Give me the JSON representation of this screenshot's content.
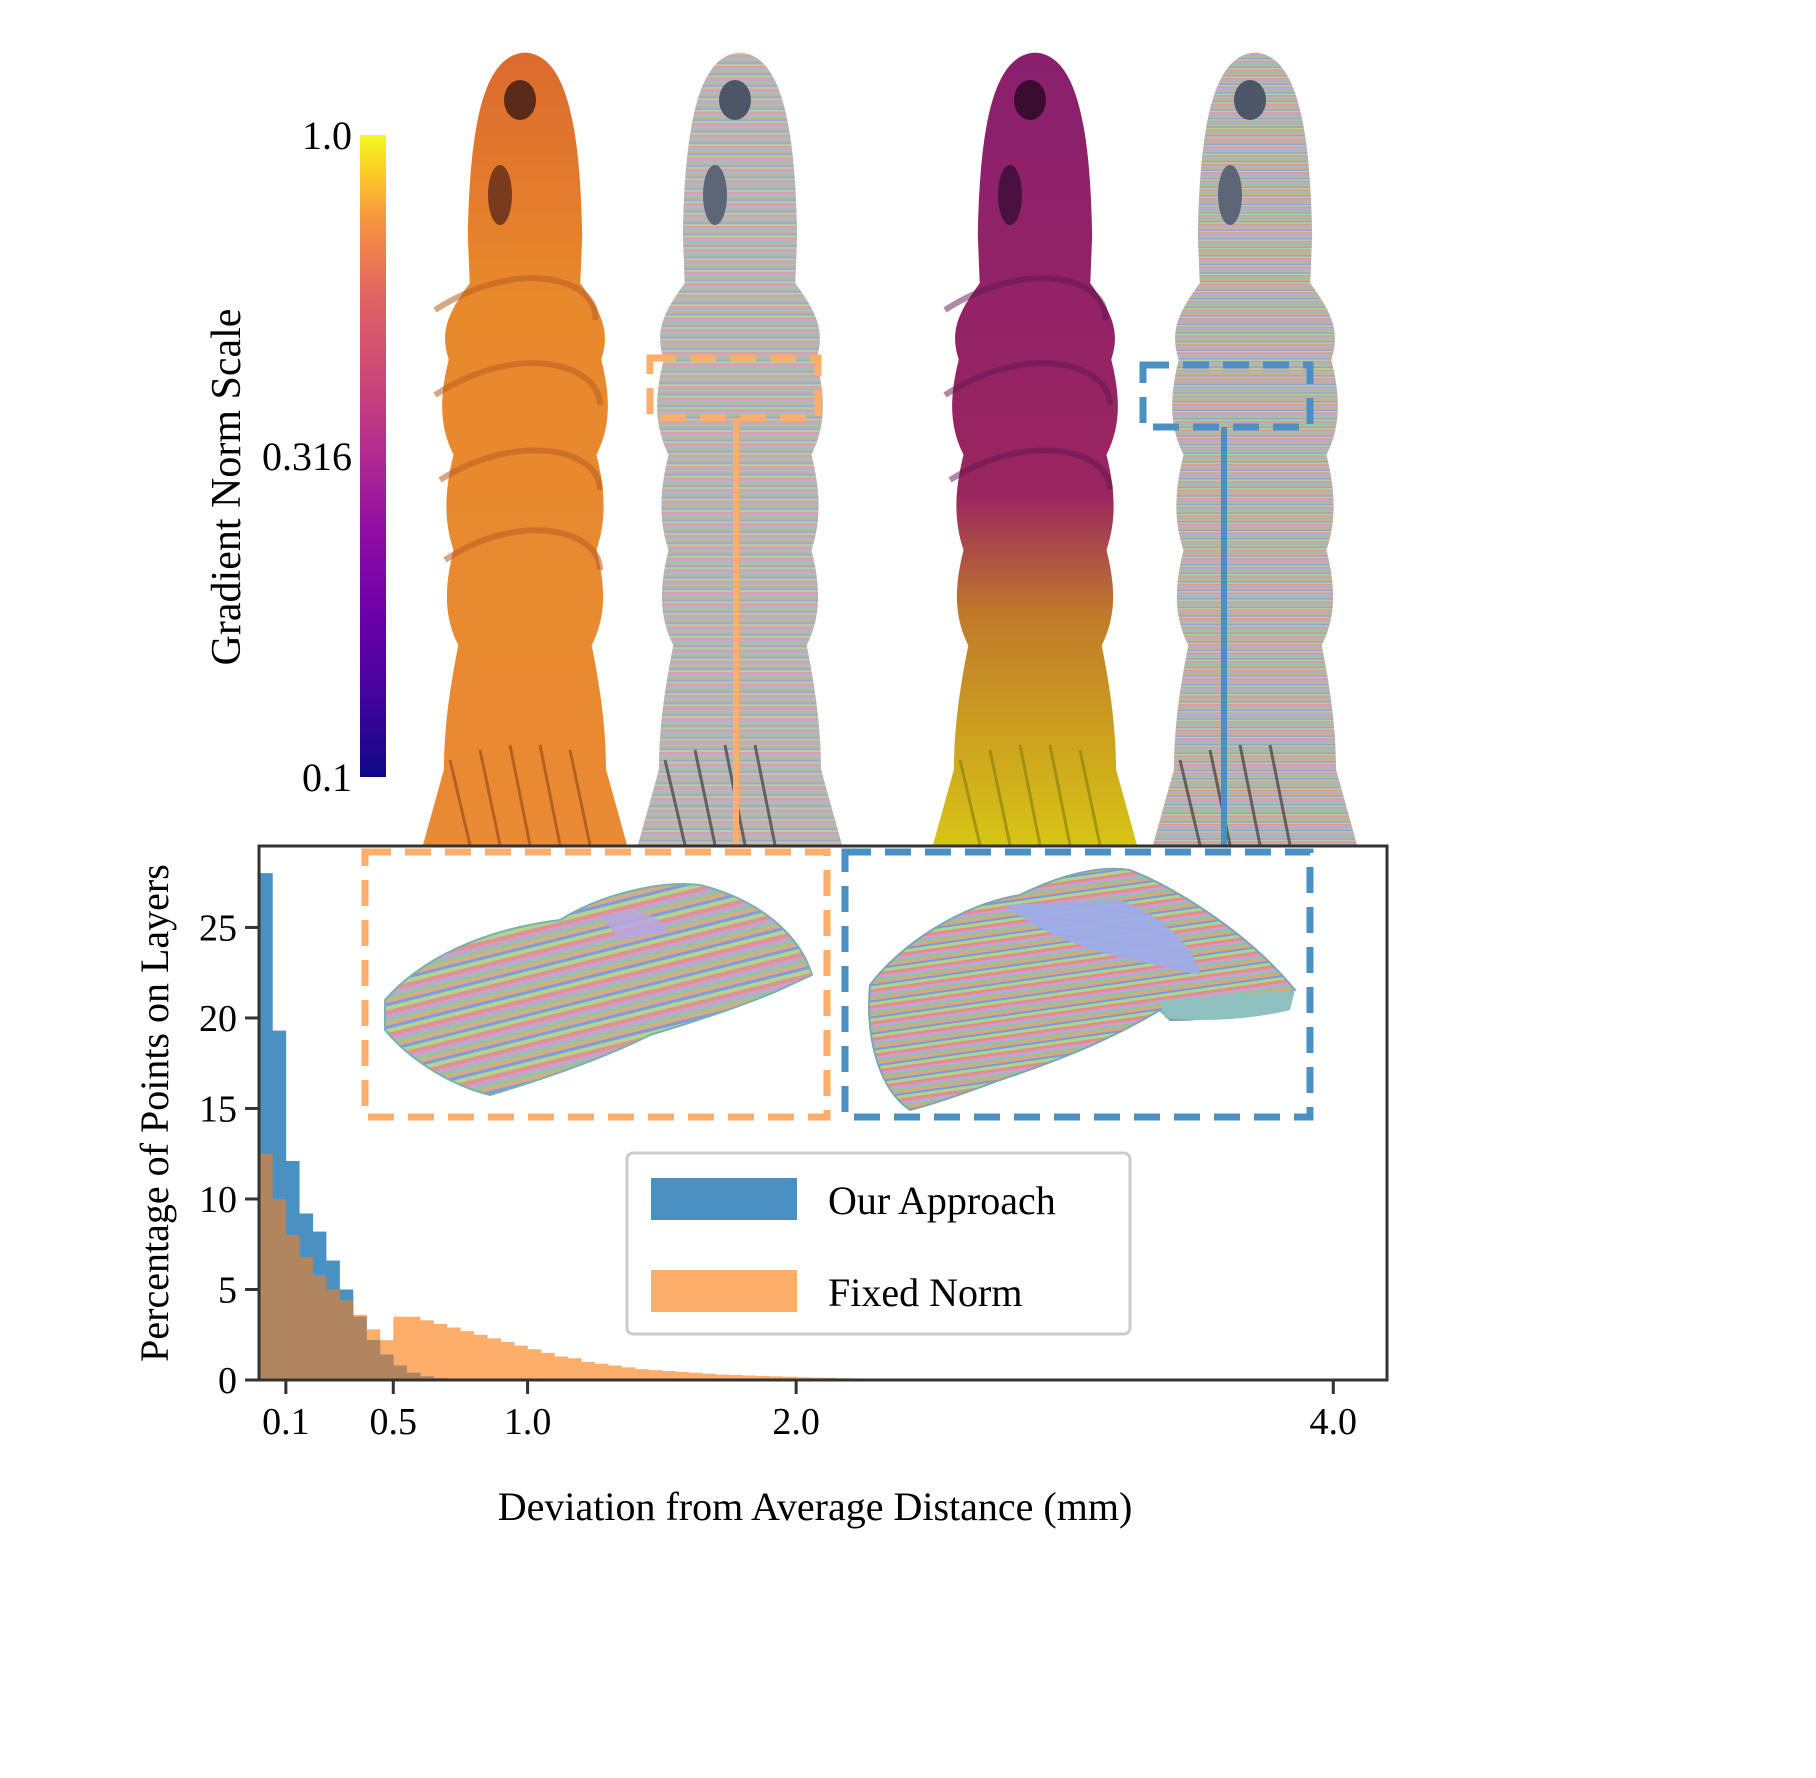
{
  "colorbar": {
    "label": "Gradient Norm Scale",
    "ticks": [
      {
        "value": 1.0,
        "label": "1.0"
      },
      {
        "value": 0.316,
        "label": "0.316"
      },
      {
        "value": 0.1,
        "label": "0.1"
      }
    ],
    "range": [
      0.1,
      1.0
    ],
    "scale": "log",
    "colormap": "plasma"
  },
  "renders": {
    "names": [
      "our-approach-gradient-render",
      "our-approach-layers-render",
      "fixed-norm-gradient-render",
      "fixed-norm-layers-render"
    ],
    "colors": {
      "ours_gradient": "#e8892c",
      "fixed_top": "#8a1f6e",
      "fixed_bottom": "#d8c814"
    }
  },
  "colors": {
    "our_approach": "#4a90c2",
    "fixed_norm": "#fdae6b",
    "overlap": "#b08560"
  },
  "chart_data": {
    "type": "bar",
    "subtype": "overlaid-histogram",
    "xlabel": "Deviation from Average Distance (mm)",
    "ylabel": "Percentage of Points on Layers",
    "xlim": [
      0.0,
      4.2
    ],
    "ylim": [
      0,
      29.5
    ],
    "xticks": [
      {
        "value": 0.1,
        "label": "0.1"
      },
      {
        "value": 0.5,
        "label": "0.5"
      },
      {
        "value": 1.0,
        "label": "1.0"
      },
      {
        "value": 2.0,
        "label": "2.0"
      },
      {
        "value": 4.0,
        "label": "4.0"
      }
    ],
    "yticks": [
      {
        "value": 0,
        "label": "0"
      },
      {
        "value": 5,
        "label": "5"
      },
      {
        "value": 10,
        "label": "10"
      },
      {
        "value": 15,
        "label": "15"
      },
      {
        "value": 20,
        "label": "20"
      },
      {
        "value": 25,
        "label": "25"
      }
    ],
    "bin_width": 0.05,
    "bin_start": 0.0,
    "legend_position": "center-right",
    "series": [
      {
        "name": "Our Approach",
        "color": "#4a90c2",
        "values": [
          28.0,
          19.3,
          12.1,
          9.2,
          8.2,
          6.6,
          5.0,
          3.5,
          2.2,
          1.4,
          0.8,
          0.4,
          0.2,
          0.1,
          0.05,
          0.02
        ]
      },
      {
        "name": "Fixed Norm",
        "color": "#fdae6b",
        "values": [
          12.5,
          10.0,
          8.0,
          6.8,
          5.8,
          5.0,
          4.4,
          3.6,
          2.8,
          2.2,
          3.5,
          3.5,
          3.3,
          3.1,
          2.9,
          2.7,
          2.5,
          2.3,
          2.1,
          1.9,
          1.7,
          1.5,
          1.3,
          1.2,
          1.0,
          0.9,
          0.8,
          0.7,
          0.6,
          0.55,
          0.5,
          0.45,
          0.4,
          0.35,
          0.3,
          0.28,
          0.25,
          0.22,
          0.2,
          0.18,
          0.15,
          0.13,
          0.12,
          0.1,
          0.09,
          0.08,
          0.07,
          0.06,
          0.05,
          0.04,
          0.03,
          0.03,
          0.02,
          0.02,
          0.02,
          0.01,
          0.01,
          0.01,
          0.01,
          0.01
        ]
      }
    ]
  }
}
